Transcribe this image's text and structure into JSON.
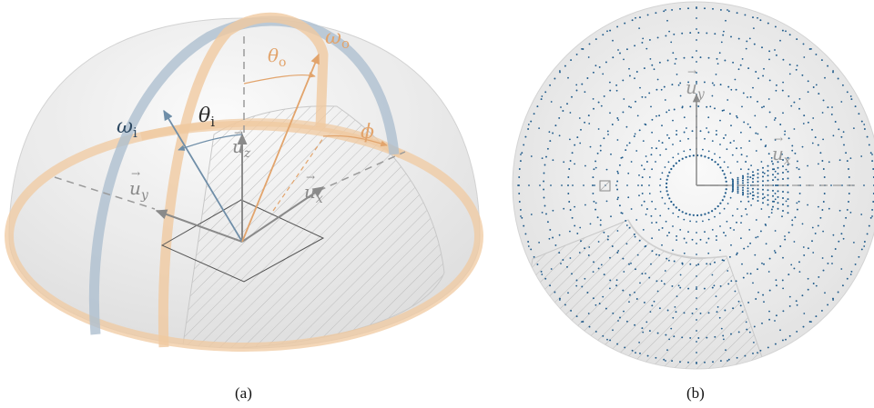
{
  "panel_a": {
    "caption": "(a)",
    "labels": {
      "omega_i": "ω",
      "omega_i_sub": "i",
      "theta_i": "θ",
      "theta_i_sub": "i",
      "theta_o": "θ",
      "theta_o_sub": "o",
      "omega_o": "ω",
      "omega_o_sub": "o",
      "phi": "ϕ",
      "u_x": "u",
      "u_x_sub": "x",
      "u_y": "u",
      "u_y_sub": "y",
      "u_z": "u",
      "u_z_sub": "z"
    }
  },
  "panel_b": {
    "caption": "(b)",
    "labels": {
      "u_x": "u",
      "u_x_sub": "x",
      "u_y": "u",
      "u_y_sub": "y"
    }
  },
  "colors": {
    "incident_blue": "#6f8ea8",
    "outgoing_orange": "#e2a46c",
    "axis_gray": "#8a8a8a",
    "dot_blue": "#1f5a8a"
  }
}
